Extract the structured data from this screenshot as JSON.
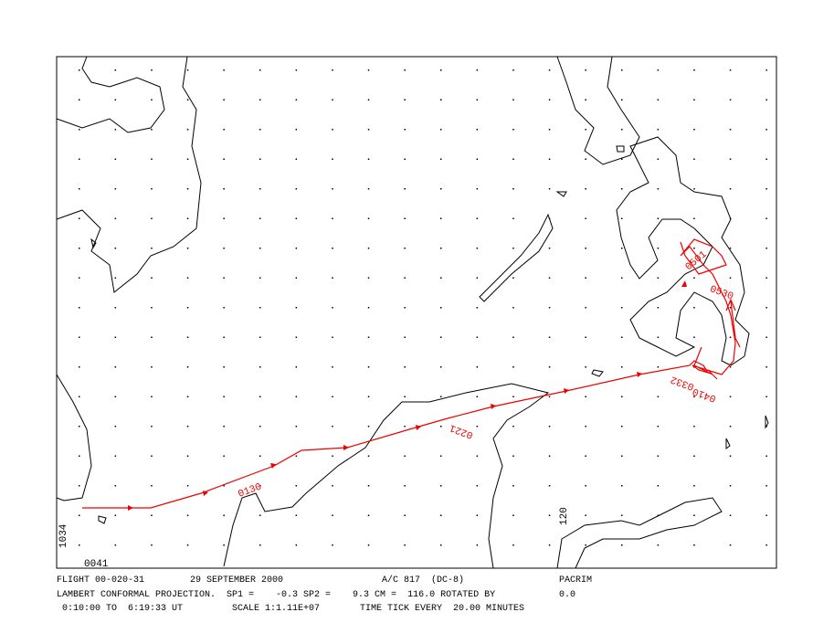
{
  "map": {
    "track_labels": [
      "0130",
      "0221",
      "0332",
      "0410",
      "0501",
      "0530"
    ],
    "corner_labels": [
      "0041",
      "1034",
      "120"
    ],
    "footer": {
      "line1": [
        "FLIGHT 00-020-31",
        "29 SEPTEMBER 2000",
        "A/C 817  (DC-8)",
        "PACRIM"
      ],
      "line2": [
        "LAMBERT CONFORMAL PROJECTION.  SP1 =    -0.3 SP2 =    9.3 CM =  116.0 ROTATED BY",
        "0.0"
      ],
      "line3": [
        "0:10:00 TO  6:19:33 UT",
        "SCALE 1:1.11E+07",
        "TIME TICK EVERY  20.00 MINUTES"
      ]
    }
  }
}
